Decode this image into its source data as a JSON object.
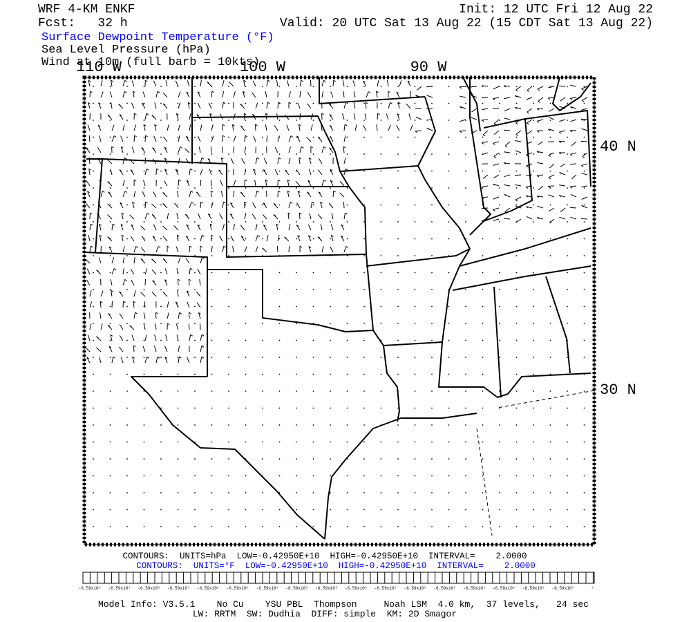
{
  "header": {
    "model": "WRF 4-KM ENKF",
    "forecast": "Fcst:   32 h",
    "init": "Init: 12 UTC Fri 12 Aug 22",
    "valid": "Valid: 20 UTC Sat 13 Aug 22 (15 CDT Sat 13 Aug 22)",
    "fields": [
      "Surface Dewpoint Temperature (°F)",
      "Sea Level Pressure (hPa)",
      "Wind at 10m (full barb = 10kts)"
    ]
  },
  "map": {
    "longitude_labels": [
      "110 W",
      "100 W",
      "90 W"
    ],
    "latitude_labels": [
      "40 N",
      "30 N"
    ]
  },
  "contours": [
    "CONTOURS:  UNITS=hPa  LOW=-0.42950E+10  HIGH=-0.42950E+10  INTERVAL=    2.0000",
    "CONTOURS:  UNITS=°F  LOW=-0.42950E+10  HIGH=-0.42950E+10  INTERVAL=    2.0000"
  ],
  "colorbar": {
    "labels": [
      "-6.59x10⁹",
      "-6.59x10⁹",
      "-6.59x10⁹",
      "-6.59x10⁹",
      "-6.59x10⁹",
      "-6.59x10⁹",
      "-6.59x10⁹",
      "-6.59x10⁹",
      "-6.59x10⁹",
      "-6.59x10⁹",
      "-6.59x10⁹",
      "-6.59x10⁹",
      "-6.59x10⁹",
      "-6.59x10⁹",
      "-6.59x10⁹",
      "-6.59x10⁹",
      "-6.59x10⁹",
      "⁹"
    ]
  },
  "footer": [
    "Model Info: V3.5.1    No Cu    YSU PBL  Thompson     Noah LSM  4.0 km,  37 levels,   24 sec",
    "LW: RRTM  SW: Dudhia  DIFF: simple  KM: 2D Smagor"
  ]
}
